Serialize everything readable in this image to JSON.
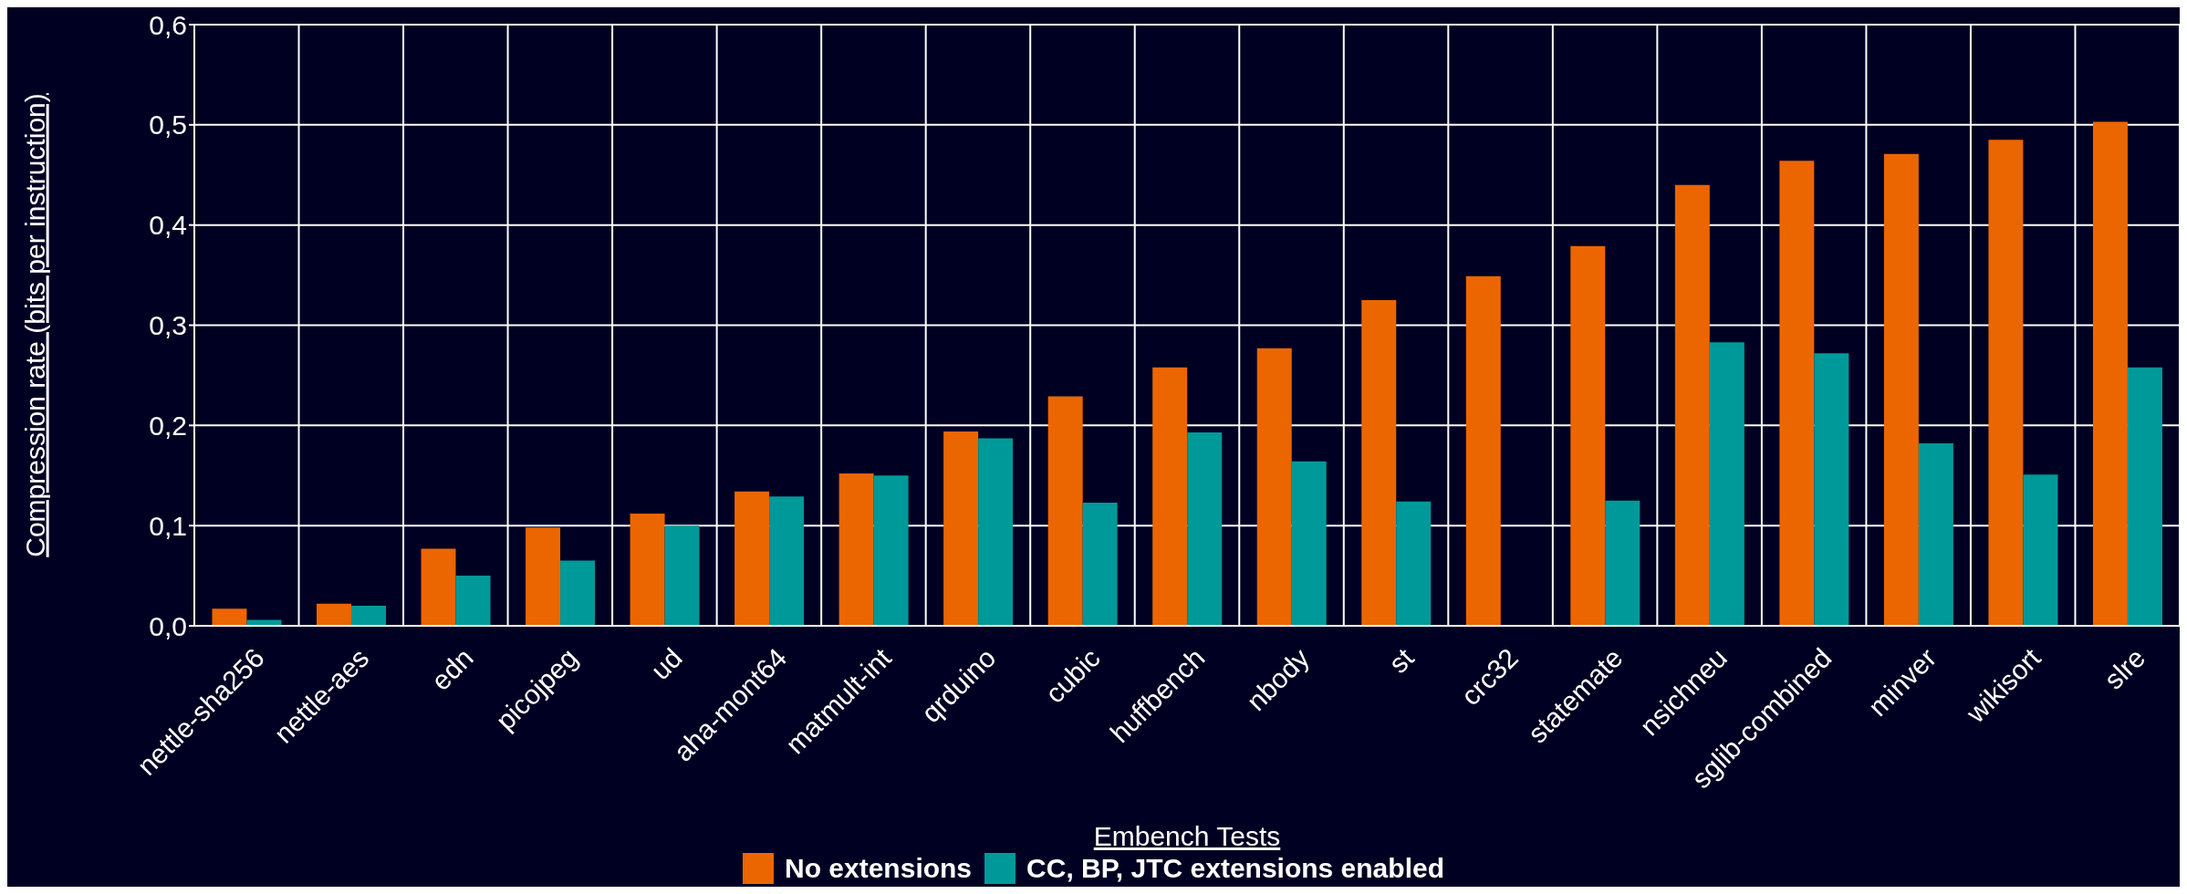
{
  "chart_data": {
    "type": "bar",
    "xlabel": "Embench Tests",
    "ylabel": "Compression rate (bits per instruction)",
    "categories": [
      "nettle-sha256",
      "nettle-aes",
      "edn",
      "picojpeg",
      "ud",
      "aha-mont64",
      "matmult-int",
      "qrduino",
      "cubic",
      "huffbench",
      "nbody",
      "st",
      "crc32",
      "statemate",
      "nsichneu",
      "sglib-combined",
      "minver",
      "wikisort",
      "slre"
    ],
    "series": [
      {
        "name": "No extensions",
        "color": "#eb6600",
        "values": [
          0.017,
          0.022,
          0.077,
          0.098,
          0.112,
          0.134,
          0.152,
          0.194,
          0.229,
          0.258,
          0.277,
          0.325,
          0.349,
          0.379,
          0.44,
          0.464,
          0.471,
          0.485,
          0.503
        ]
      },
      {
        "name": "CC, BP, JTC extensions enabled",
        "color": "#009999",
        "values": [
          0.006,
          0.02,
          0.05,
          0.065,
          0.1,
          0.129,
          0.15,
          0.187,
          0.123,
          0.193,
          0.164,
          0.124,
          0,
          0.125,
          0.283,
          0.272,
          0.182,
          0.151,
          0.258
        ]
      }
    ],
    "ylim": [
      0,
      0.6
    ],
    "yticks": [
      {
        "value": 0,
        "label": "0,0"
      },
      {
        "value": 0.1,
        "label": "0,1"
      },
      {
        "value": 0.2,
        "label": "0,2"
      },
      {
        "value": 0.3,
        "label": "0,3"
      },
      {
        "value": 0.4,
        "label": "0,4"
      },
      {
        "value": 0.5,
        "label": "0,5"
      },
      {
        "value": 0.6,
        "label": "0,6"
      }
    ],
    "grid": true,
    "legend": "bottom"
  }
}
